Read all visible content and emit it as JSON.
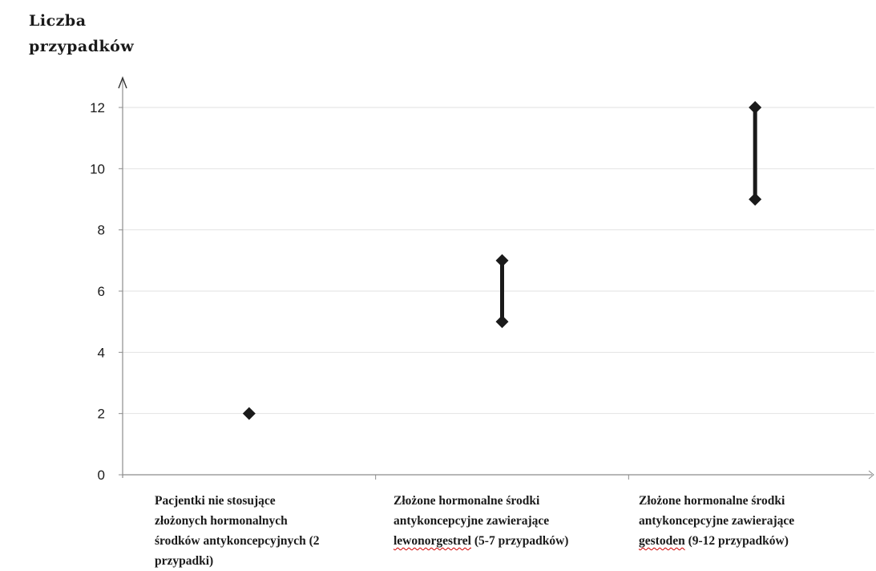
{
  "chart_data": {
    "type": "scatter",
    "title": "",
    "ylabel": [
      "Liczba",
      "przypadków"
    ],
    "xlabel": "",
    "ylim": [
      0,
      12
    ],
    "yticks": [
      0,
      2,
      4,
      6,
      8,
      10,
      12
    ],
    "ytick_labels": [
      "0",
      "2",
      "4",
      "6",
      "8",
      "10",
      "12"
    ],
    "grid": true,
    "categories": [
      "Pacjentki nie stosujące złożonych hormonalnych środków antykoncepcyjnych (2 przypadki)",
      "Złożone hormonalne środki antykoncepcyjne zawierające lewonorgestrel (5-7 przypadków)",
      "Złożone hormonalne środki antykoncepcyjne zawierające gestoden (9-12 przypadków)"
    ],
    "category_lines": [
      [
        "Pacjentki nie stosujące",
        "złożonych hormonalnych",
        "środków antykoncepcyjnych (2",
        "przypadki)"
      ],
      [
        "Złożone hormonalne środki",
        "antykoncepcyjne zawierające",
        "lewonorgestrel (5-7 przypadków)"
      ],
      [
        "Złożone hormonalne środki",
        "antykoncepcyjne zawierające",
        "gestoden (9-12 przypadków)"
      ]
    ],
    "series": [
      {
        "values": [
          2,
          5,
          9
        ]
      },
      {
        "values": [
          2,
          7,
          12
        ]
      }
    ],
    "colors": {
      "marker": "#1a1a1a",
      "grid": "#e2e2e2",
      "axis": "#8c8c8c"
    }
  }
}
